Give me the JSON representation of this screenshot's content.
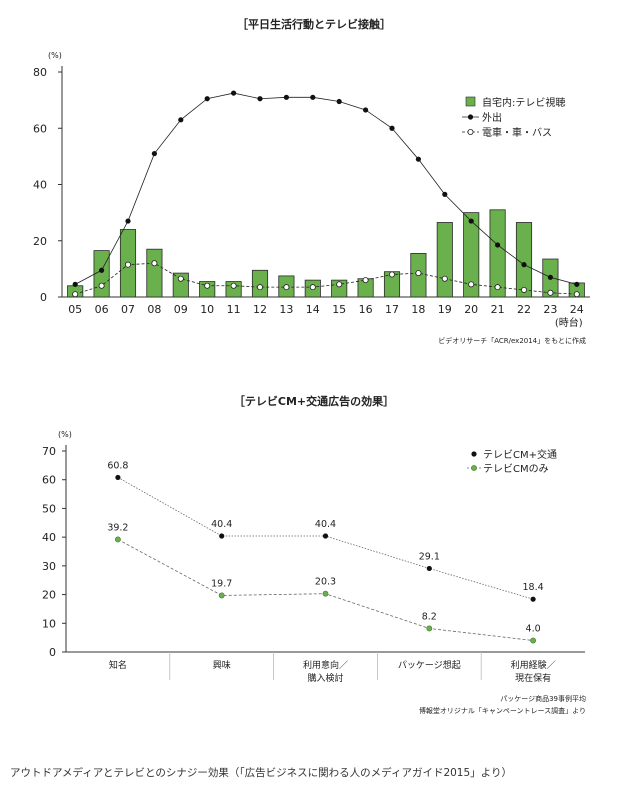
{
  "chart_data": [
    {
      "type": "bar+line",
      "title": "［平日生活行動とテレビ接触］",
      "ylabel": "(%)",
      "xunit": "(時台)",
      "ylim": [
        0,
        80
      ],
      "yticks": [
        "0",
        "20",
        "40",
        "60",
        "80"
      ],
      "categories": [
        "05",
        "06",
        "07",
        "08",
        "09",
        "10",
        "11",
        "12",
        "13",
        "14",
        "15",
        "16",
        "17",
        "18",
        "19",
        "20",
        "21",
        "22",
        "23",
        "24"
      ],
      "series": [
        {
          "name": "自宅内:テレビ視聴",
          "kind": "bar",
          "color": "#6ab04c",
          "values": [
            4,
            16.5,
            24,
            17,
            8.5,
            5.5,
            5.5,
            9.5,
            7.5,
            6,
            6,
            6.5,
            9,
            15.5,
            26.5,
            30,
            31,
            26.5,
            13.5,
            5
          ]
        },
        {
          "name": "外出",
          "kind": "line",
          "marker": "filled",
          "values": [
            4.5,
            9.5,
            27,
            51,
            63,
            70.5,
            72.5,
            70.5,
            71,
            71,
            69.5,
            66.5,
            60,
            49,
            36.5,
            27,
            18.5,
            11.5,
            7,
            4.5
          ]
        },
        {
          "name": "電車・車・バス",
          "kind": "line",
          "marker": "open",
          "values": [
            1,
            4,
            11.5,
            12,
            6.5,
            4,
            4,
            3.5,
            3.5,
            3.5,
            4.5,
            6,
            8,
            8.5,
            6.5,
            4.5,
            3.5,
            2.5,
            1.5,
            1
          ]
        }
      ],
      "source": "ビデオリサーチ「ACR/ex2014」をもとに作成"
    },
    {
      "type": "line",
      "title": "［テレビCM+交通広告の効果］",
      "ylabel": "(%)",
      "ylim": [
        0,
        70
      ],
      "yticks": [
        "0",
        "10",
        "20",
        "30",
        "40",
        "50",
        "60",
        "70"
      ],
      "categories": [
        [
          "知名"
        ],
        [
          "興味"
        ],
        [
          "利用意向／",
          "購入検討"
        ],
        [
          "パッケージ想起"
        ],
        [
          "利用経験／",
          "現在保有"
        ]
      ],
      "series": [
        {
          "name": "テレビCM+交通",
          "marker": "filled",
          "color": "#111111",
          "values": [
            60.8,
            40.4,
            40.4,
            29.1,
            18.4
          ],
          "labels": [
            "60.8",
            "40.4",
            "40.4",
            "29.1",
            "18.4"
          ]
        },
        {
          "name": "テレビCMのみ",
          "marker": "green",
          "color": "#6ab04c",
          "values": [
            39.2,
            19.7,
            20.3,
            8.2,
            4.0
          ],
          "labels": [
            "39.2",
            "19.7",
            "20.3",
            "8.2",
            "4.0"
          ]
        }
      ],
      "notes": [
        "パッケージ商品39事例平均",
        "博報堂オリジナル「キャンペーントレース調査」より"
      ]
    }
  ],
  "caption": "アウトドアメディアとテレビとのシナジー効果（「広告ビジネスに関わる人のメディアガイド2015」より）"
}
